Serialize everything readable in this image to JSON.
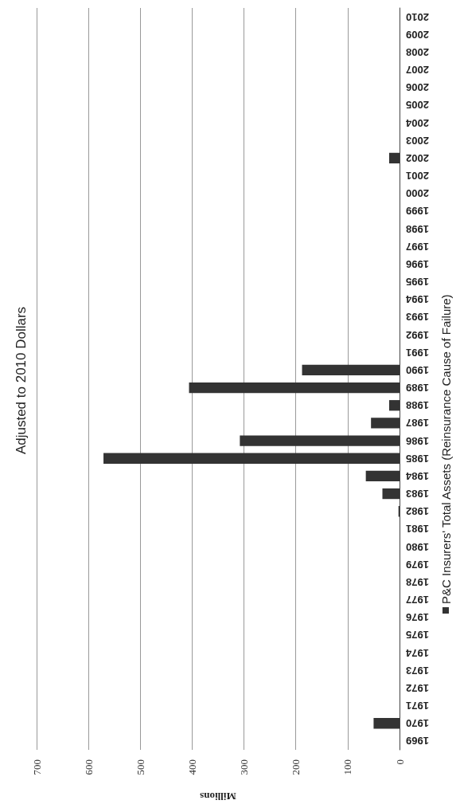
{
  "chart_data": {
    "type": "bar",
    "orientation": "horizontal",
    "title": "Adjusted to 2010 Dollars",
    "xlabel": "Millions",
    "categories": [
      "2010",
      "2009",
      "2008",
      "2007",
      "2006",
      "2005",
      "2004",
      "2003",
      "2002",
      "2001",
      "2000",
      "1999",
      "1998",
      "1997",
      "1996",
      "1995",
      "1994",
      "1993",
      "1992",
      "1991",
      "1990",
      "1989",
      "1988",
      "1987",
      "1986",
      "1985",
      "1984",
      "1983",
      "1982",
      "1981",
      "1980",
      "1979",
      "1978",
      "1977",
      "1976",
      "1975",
      "1974",
      "1973",
      "1972",
      "1971",
      "1970",
      "1969"
    ],
    "series": [
      {
        "name": "P&C Insurers' Total Assets (Reinsurance Cause of Failure)",
        "color": "#333333",
        "values": [
          0,
          0,
          0,
          0,
          0,
          0,
          0,
          0,
          20,
          0,
          0,
          0,
          0,
          0,
          0,
          0,
          0,
          0,
          0,
          0,
          188,
          406,
          20,
          55,
          308,
          571,
          65,
          33,
          2,
          0,
          0,
          0,
          0,
          0,
          0,
          0,
          0,
          0,
          0,
          0,
          50,
          0
        ]
      }
    ],
    "xlim": [
      700,
      0
    ],
    "xticks": [
      700,
      600,
      500,
      400,
      300,
      200,
      100,
      0
    ],
    "grid": "x",
    "legend": "right"
  }
}
